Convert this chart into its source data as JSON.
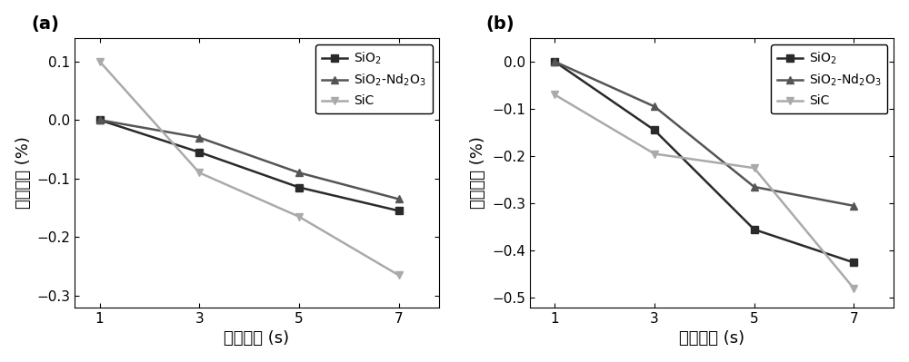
{
  "x": [
    1,
    3,
    5,
    7
  ],
  "panel_a": {
    "label": "(a)",
    "SiO2": [
      0.0,
      -0.055,
      -0.115,
      -0.155
    ],
    "SiO2_Nd2O3": [
      0.0,
      -0.03,
      -0.09,
      -0.135
    ],
    "SiC": [
      0.1,
      -0.09,
      -0.165,
      -0.265
    ],
    "ylim": [
      -0.32,
      0.14
    ],
    "yticks": [
      -0.3,
      -0.2,
      -0.1,
      0.0,
      0.1
    ],
    "ylabel": "质量变化 (%)",
    "xlabel": "烧蚀时间 (s)"
  },
  "panel_b": {
    "label": "(b)",
    "SiO2": [
      0.0,
      -0.145,
      -0.355,
      -0.425
    ],
    "SiO2_Nd2O3": [
      0.0,
      -0.095,
      -0.265,
      -0.305
    ],
    "SiC": [
      -0.07,
      -0.195,
      -0.225,
      -0.48
    ],
    "ylim": [
      -0.52,
      0.05
    ],
    "yticks": [
      -0.5,
      -0.4,
      -0.3,
      -0.2,
      -0.1,
      0.0
    ],
    "ylabel": "质量变化 (%)",
    "xlabel": "烧蚀时间 (s)"
  },
  "colors": {
    "SiO2": "#2a2a2a",
    "SiO2_Nd2O3": "#555555",
    "SiC": "#aaaaaa"
  },
  "legend_labels": {
    "SiO2": "SiO$_2$",
    "SiO2_Nd2O3": "SiO$_2$-Nd$_2$O$_3$",
    "SiC": "SiC"
  },
  "markers": {
    "SiO2": "s",
    "SiO2_Nd2O3": "^",
    "SiC": "v"
  },
  "linewidth": 1.8,
  "markersize": 6,
  "tick_fontsize": 11,
  "label_fontsize": 13,
  "legend_fontsize": 10,
  "panel_label_fontsize": 14
}
